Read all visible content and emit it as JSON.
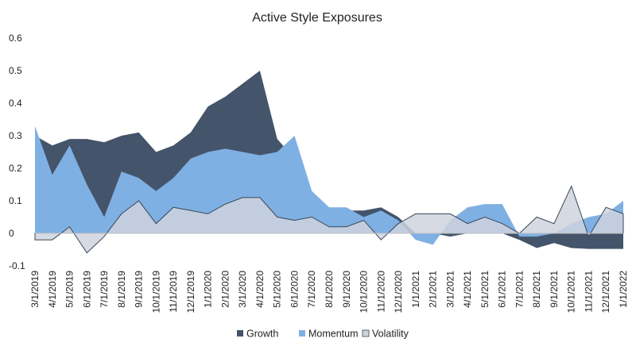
{
  "chart_data": {
    "type": "area",
    "title": "Active Style Exposures",
    "xlabel": "",
    "ylabel": "",
    "ylim": [
      -0.1,
      0.6
    ],
    "yticks": [
      "0.6",
      "0.5",
      "0.4",
      "0.3",
      "0.2",
      "0.1",
      "0",
      "-0.1"
    ],
    "ytick_values": [
      0.6,
      0.5,
      0.4,
      0.3,
      0.2,
      0.1,
      0,
      -0.1
    ],
    "grid": false,
    "legend_position": "bottom",
    "x": [
      "3/1/2019",
      "4/1/2019",
      "5/1/2019",
      "6/1/2019",
      "7/1/2019",
      "8/1/2019",
      "9/1/2019",
      "10/1/2019",
      "11/1/2019",
      "12/1/2019",
      "1/1/2020",
      "2/1/2020",
      "3/1/2020",
      "4/1/2020",
      "5/1/2020",
      "6/1/2020",
      "7/1/2020",
      "8/1/2020",
      "9/1/2020",
      "10/1/2020",
      "11/1/2020",
      "12/1/2020",
      "1/1/2021",
      "2/1/2021",
      "3/1/2021",
      "4/1/2021",
      "5/1/2021",
      "6/1/2021",
      "7/1/2021",
      "8/1/2021",
      "9/1/2021",
      "10/1/2021",
      "11/1/2021",
      "12/1/2021",
      "1/1/2022"
    ],
    "series": [
      {
        "name": "Growth",
        "color": "#44546a",
        "values": [
          0.3,
          0.27,
          0.29,
          0.29,
          0.28,
          0.3,
          0.31,
          0.25,
          0.27,
          0.31,
          0.39,
          0.42,
          0.46,
          0.5,
          0.29,
          0.23,
          0.12,
          0.08,
          0.07,
          0.07,
          0.08,
          0.05,
          0.0,
          0.0,
          -0.01,
          0.0,
          0.0,
          0.0,
          -0.02,
          -0.045,
          -0.03,
          -0.045,
          -0.048,
          -0.048,
          -0.048
        ]
      },
      {
        "name": "Momentum",
        "color": "#7fb0e3",
        "values": [
          0.33,
          0.18,
          0.27,
          0.15,
          0.05,
          0.19,
          0.17,
          0.13,
          0.17,
          0.23,
          0.25,
          0.26,
          0.25,
          0.24,
          0.25,
          0.3,
          0.13,
          0.08,
          0.08,
          0.05,
          0.07,
          0.04,
          -0.02,
          -0.035,
          0.04,
          0.08,
          0.09,
          0.09,
          -0.01,
          -0.01,
          0.0,
          0.03,
          0.05,
          0.06,
          0.1
        ]
      },
      {
        "name": "Volatility",
        "color": "#ced4de",
        "values": [
          -0.02,
          -0.02,
          0.02,
          -0.06,
          -0.01,
          0.06,
          0.1,
          0.03,
          0.08,
          0.07,
          0.06,
          0.09,
          0.11,
          0.11,
          0.05,
          0.04,
          0.05,
          0.02,
          0.02,
          0.04,
          -0.02,
          0.03,
          0.06,
          0.06,
          0.06,
          0.03,
          0.05,
          0.03,
          0.0,
          0.05,
          0.03,
          0.145,
          -0.01,
          0.08,
          0.06
        ]
      }
    ]
  }
}
